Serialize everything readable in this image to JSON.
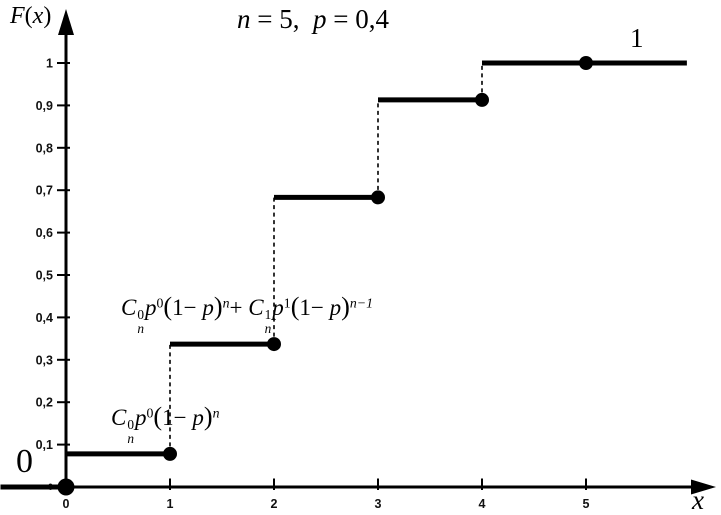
{
  "colors": {
    "ink": "#000000",
    "tick_label": "#111111",
    "background": "#ffffff"
  },
  "chart_data": {
    "type": "line",
    "subtype": "step_function_cdf_binomial",
    "title_text": "n = 5,  p = 0,4",
    "title_tokens": [
      [
        "i",
        "n"
      ],
      [
        "t",
        " = 5,  "
      ],
      [
        "i",
        "p"
      ],
      [
        "t",
        " = 0,4"
      ]
    ],
    "ylabel_text": "F(x)",
    "ylabel_tokens": [
      [
        "i",
        "F"
      ],
      [
        "t",
        "("
      ],
      [
        "i",
        "x"
      ],
      [
        "t",
        ")"
      ]
    ],
    "xlabel": "x",
    "xlim": [
      -0.63,
      6.25
    ],
    "ylim": [
      0,
      1.15
    ],
    "grid": false,
    "x_ticks": [
      {
        "v": 0,
        "label": "0"
      },
      {
        "v": 1,
        "label": "1"
      },
      {
        "v": 2,
        "label": "2"
      },
      {
        "v": 3,
        "label": "3"
      },
      {
        "v": 4,
        "label": "4"
      },
      {
        "v": 5,
        "label": "5"
      }
    ],
    "y_ticks": [
      {
        "v": 0,
        "label": "0",
        "small": true
      },
      {
        "v": 0.1,
        "label": "0,1"
      },
      {
        "v": 0.2,
        "label": "0,2"
      },
      {
        "v": 0.3,
        "label": "0,3"
      },
      {
        "v": 0.4,
        "label": "0,4"
      },
      {
        "v": 0.5,
        "label": "0,5"
      },
      {
        "v": 0.6,
        "label": "0,6"
      },
      {
        "v": 0.7,
        "label": "0,7"
      },
      {
        "v": 0.8,
        "label": "0,8"
      },
      {
        "v": 0.9,
        "label": "0,9"
      },
      {
        "v": 1,
        "label": "1"
      }
    ],
    "segments": [
      {
        "x0": -0.63,
        "x1": 0,
        "y": 0
      },
      {
        "x0": 0,
        "x1": 1,
        "y": 0.078
      },
      {
        "x0": 1,
        "x1": 2,
        "y": 0.337
      },
      {
        "x0": 2,
        "x1": 3,
        "y": 0.683
      },
      {
        "x0": 3,
        "x1": 4,
        "y": 0.913
      },
      {
        "x0": 4,
        "x1": 5.97,
        "y": 1.0
      }
    ],
    "dots": [
      {
        "x": 0,
        "y": 0
      },
      {
        "x": 1,
        "y": 0.078
      },
      {
        "x": 2,
        "y": 0.337
      },
      {
        "x": 3,
        "y": 0.683
      },
      {
        "x": 4,
        "y": 0.913
      },
      {
        "x": 5,
        "y": 1.0
      }
    ],
    "dashed_jumps": [
      {
        "x": 1,
        "y_from": 0.078,
        "y_to": 0.337
      },
      {
        "x": 2,
        "y_from": 0.337,
        "y_to": 0.683
      },
      {
        "x": 3,
        "y_from": 0.683,
        "y_to": 0.913
      },
      {
        "x": 4,
        "y_from": 0.913,
        "y_to": 1.0
      }
    ],
    "annotations": {
      "left_of_origin": "0",
      "top_right_value": "1",
      "f0": {
        "text": "C_n^0 p^0 (1−p)^n",
        "tokens": [
          [
            "i",
            "C"
          ],
          [
            "ss",
            "0",
            "n"
          ],
          [
            "i",
            "p"
          ],
          [
            "sup",
            "0"
          ],
          [
            "big",
            "("
          ],
          [
            "t",
            "1− "
          ],
          [
            "i",
            "p"
          ],
          [
            "big",
            ")"
          ],
          [
            "supi",
            "n"
          ]
        ]
      },
      "f01": {
        "text": "C_n^0 p^0 (1−p)^n + C_n^1 p^1 (1−p)^(n−1)",
        "tokens": [
          [
            "i",
            "C"
          ],
          [
            "ss",
            "0",
            "n"
          ],
          [
            "i",
            "p"
          ],
          [
            "sup",
            "0"
          ],
          [
            "big",
            "("
          ],
          [
            "t",
            "1− "
          ],
          [
            "i",
            "p"
          ],
          [
            "big",
            ")"
          ],
          [
            "supi",
            "n"
          ],
          [
            "t",
            "+ "
          ],
          [
            "i",
            "C"
          ],
          [
            "ss",
            "1",
            "n"
          ],
          [
            "i",
            "p"
          ],
          [
            "sup",
            "1"
          ],
          [
            "big",
            "("
          ],
          [
            "t",
            "1− "
          ],
          [
            "i",
            "p"
          ],
          [
            "big",
            ")"
          ],
          [
            "supi",
            "n−1"
          ]
        ]
      }
    }
  }
}
